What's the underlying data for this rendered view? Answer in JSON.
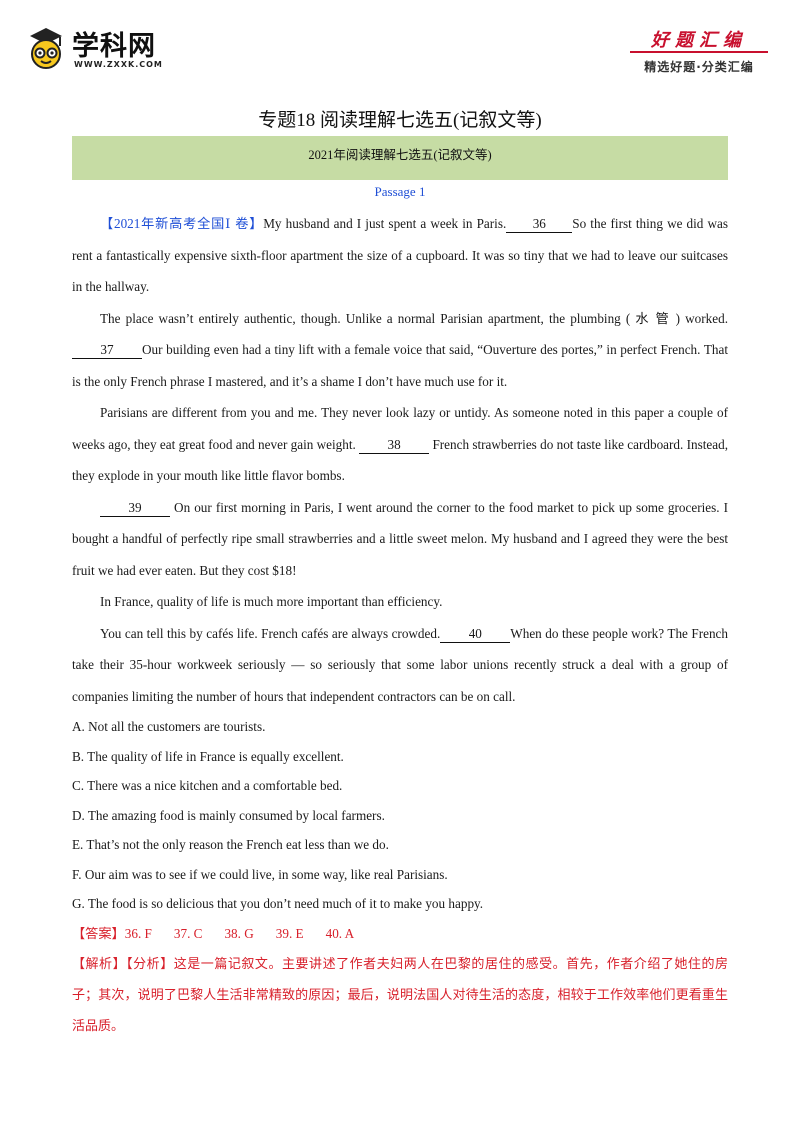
{
  "header": {
    "logo_text": "学科网",
    "logo_url": "WWW.ZXXK.COM",
    "brand_top": "好题汇编",
    "brand_bottom": "精选好题·分类汇编"
  },
  "title": "专题18 阅读理解七选五(记叙文等)",
  "subtitle": "2021年阅读理解七选五(记叙文等)",
  "passage_title": "Passage  1",
  "paragraphs": {
    "p1": {
      "source": "【2021年新高考全国Ⅰ 卷】",
      "text_a": "My husband and I just spent a week in Paris.",
      "blank": "36",
      "text_b": "So the first thing we did was rent a fantastically expensive sixth-floor apartment the size of a cupboard. It was so tiny that we had to leave our suitcases in the hallway."
    },
    "p2": {
      "text_a": "The place wasn’t entirely authentic, though. Unlike a normal Parisian apartment, the plumbing ( 水 管 ) worked. ",
      "blank": "37",
      "text_b": "Our building even had a tiny lift with a female voice that said, “Ouverture des portes,” in perfect French. That is the only French phrase I mastered, and it’s a shame I don’t have much use for it."
    },
    "p3": {
      "text_a": "Parisians are different from you and me. They never look lazy or untidy. As someone noted in this paper a couple of weeks ago, they eat great food and never gain weight. ",
      "blank": "38",
      "text_b": " French strawberries do not taste like cardboard. Instead, they explode in your mouth like little flavor bombs."
    },
    "p4": {
      "blank": "39",
      "text_b": " On our first morning in Paris, I went around the corner to the food market to pick up some groceries. I bought a handful of perfectly ripe small strawberries and a little sweet melon. My husband and I agreed they were the best fruit we had ever eaten. But they cost $18!"
    },
    "p5": {
      "text": "In France, quality of life is much more important than efficiency."
    },
    "p6": {
      "text_a": "You can tell this by cafés life. French cafés are always crowded.",
      "blank": "40",
      "text_b": "When do these people work? The French take their 35-hour workweek seriously — so seriously that some labor unions recently struck a deal with a group of companies limiting the number of hours that independent contractors can be on call."
    }
  },
  "options": [
    "A. Not all the customers are tourists.",
    "B. The quality of life in France is equally excellent.",
    "C. There was a nice kitchen and a comfortable bed.",
    "D. The amazing food is mainly consumed by local farmers.",
    "E. That’s not the only reason the French eat less than we do.",
    "F. Our aim was to see if we could live, in some way, like real Parisians.",
    "G. The food is so delicious that you don’t need much of it to make you happy."
  ],
  "answer": {
    "label": "【答案】",
    "items": [
      "36. F",
      "37. C",
      "38. G",
      "39. E",
      "40. A"
    ]
  },
  "analysis": "【解析】【分析】这是一篇记叙文。主要讲述了作者夫妇两人在巴黎的居住的感受。首先，作者介绍了她住的房子；其次，说明了巴黎人生活非常精致的原因；最后，说明法国人对待生活的态度，相较于工作效率他们更看重生活品质。",
  "colors": {
    "band": "#c6dca4",
    "source_blue": "#1f4fd6",
    "answer_red": "#d8202b",
    "brand_red": "#c8102e"
  }
}
